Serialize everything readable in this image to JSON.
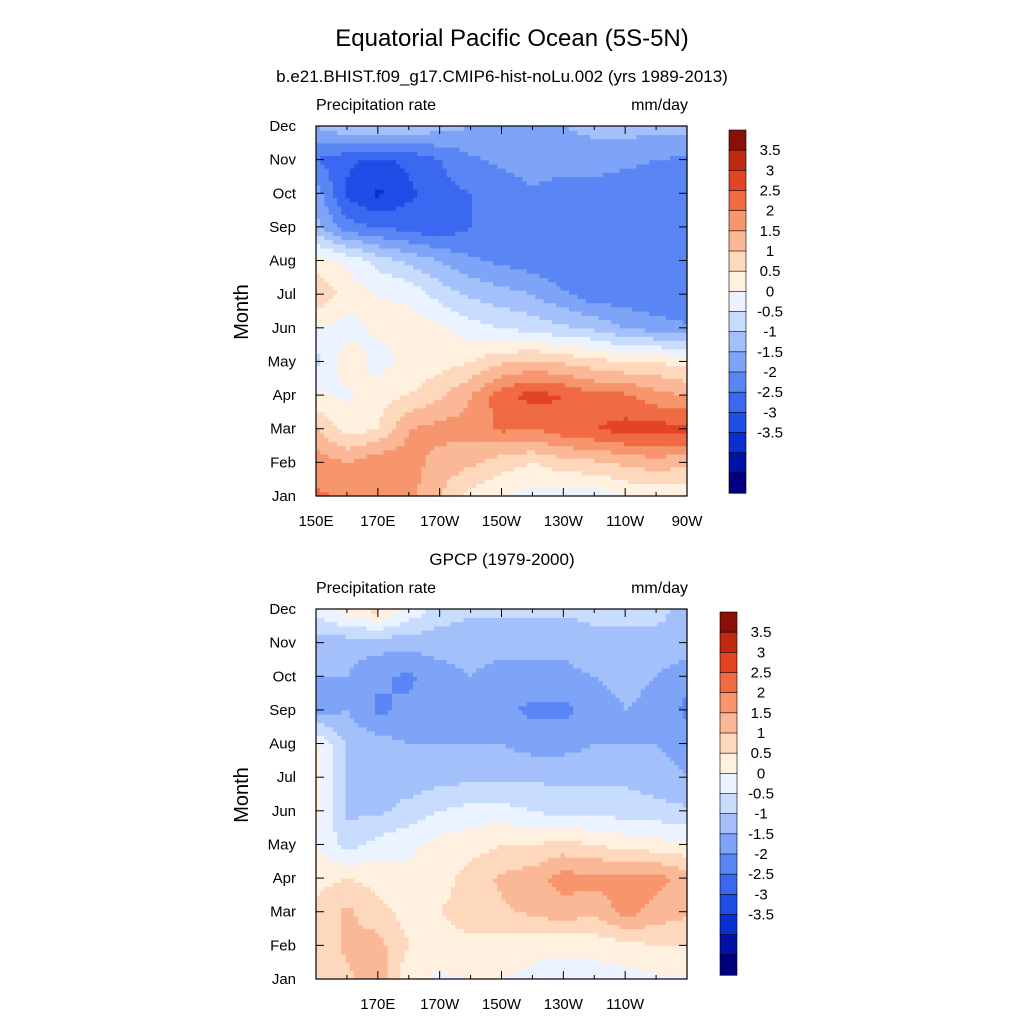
{
  "figure": {
    "title": "Equatorial Pacific Ocean (5S-5N)",
    "subtitle": "b.e21.BHIST.f09_g17.CMIP6-hist-noLu.002 (yrs 1989-2013)"
  },
  "colorbar": {
    "colors": [
      "#00007f",
      "#0011a6",
      "#0a2fd0",
      "#1f4de6",
      "#3a68f0",
      "#5a86f5",
      "#7ea4f8",
      "#a3c0fb",
      "#c8dcfd",
      "#eaf3ff",
      "#fff0e0",
      "#fdd8bc",
      "#fbb896",
      "#f7956d",
      "#f06a44",
      "#e34422",
      "#c02a10",
      "#8b0f05"
    ],
    "labels": [
      "3.5",
      "3",
      "2.5",
      "2",
      "1.5",
      "1",
      "0.5",
      "0",
      "-0.5",
      "-1",
      "-1.5",
      "-2",
      "-2.5",
      "-3",
      "-3.5"
    ],
    "levels": [
      -4,
      -3.5,
      -3,
      -2.5,
      -2,
      -1.5,
      -1,
      -0.5,
      0,
      0.5,
      1,
      1.5,
      2,
      2.5,
      3,
      3.5,
      4
    ]
  },
  "chart_data": [
    {
      "type": "heatmap",
      "title": "",
      "left_label": "Precipitation rate",
      "right_label": "mm/day",
      "ylabel": "Month",
      "x": [
        150,
        160,
        170,
        180,
        190,
        200,
        210,
        220,
        230,
        240,
        250,
        260,
        270
      ],
      "x_tick_labels": [
        "150E",
        "170E",
        "170W",
        "150W",
        "130W",
        "110W",
        "90W"
      ],
      "x_tick_values": [
        150,
        170,
        190,
        210,
        230,
        250,
        270
      ],
      "y_tick_labels": [
        "Jan",
        "Feb",
        "Mar",
        "Apr",
        "May",
        "Jun",
        "Jul",
        "Aug",
        "Sep",
        "Oct",
        "Nov",
        "Dec"
      ],
      "z": [
        [
          2.6,
          2.4,
          2.5,
          2.2,
          1.5,
          0.8,
          0.5,
          0.3,
          0.2,
          0.2,
          0.5,
          0.6,
          0.7
        ],
        [
          2.3,
          2.0,
          2.4,
          2.2,
          1.8,
          1.6,
          1.2,
          1.0,
          1.3,
          1.4,
          1.6,
          1.8,
          1.6
        ],
        [
          1.5,
          0.8,
          1.0,
          2.0,
          2.2,
          2.2,
          2.6,
          2.5,
          2.8,
          3.0,
          3.2,
          3.2,
          3.2
        ],
        [
          0.6,
          0.4,
          0.8,
          1.0,
          1.4,
          2.0,
          2.8,
          3.2,
          3.0,
          2.6,
          2.6,
          2.2,
          2.0
        ],
        [
          -0.2,
          0.8,
          0.3,
          0.6,
          0.8,
          1.0,
          1.4,
          1.6,
          1.4,
          1.2,
          1.0,
          1.0,
          0.8
        ],
        [
          0.5,
          0.3,
          0.6,
          0.8,
          0.6,
          0.2,
          0.0,
          -0.2,
          -0.4,
          -0.6,
          -1.0,
          -1.2,
          -1.4
        ],
        [
          1.4,
          0.8,
          0.5,
          0.4,
          -0.2,
          -0.6,
          -0.8,
          -1.0,
          -1.4,
          -1.8,
          -1.8,
          -2.0,
          -2.0
        ],
        [
          0.8,
          0.4,
          -0.2,
          -0.6,
          -1.0,
          -1.4,
          -1.6,
          -1.8,
          -2.0,
          -2.0,
          -2.0,
          -2.0,
          -2.0
        ],
        [
          -0.8,
          -1.8,
          -2.0,
          -2.2,
          -2.4,
          -2.0,
          -1.8,
          -1.6,
          -1.6,
          -1.8,
          -1.8,
          -1.8,
          -1.8
        ],
        [
          -1.2,
          -2.6,
          -3.1,
          -2.6,
          -2.2,
          -2.0,
          -1.8,
          -1.6,
          -1.8,
          -1.8,
          -1.8,
          -1.8,
          -1.8
        ],
        [
          -2.0,
          -2.4,
          -2.6,
          -2.4,
          -2.0,
          -1.6,
          -1.4,
          -1.2,
          -1.2,
          -1.2,
          -1.4,
          -1.5,
          -1.6
        ],
        [
          -1.0,
          -0.6,
          -0.4,
          -0.6,
          -0.8,
          -1.0,
          -1.2,
          -1.2,
          -1.0,
          -0.9,
          -0.8,
          -0.8,
          -0.8
        ]
      ]
    },
    {
      "type": "heatmap",
      "title": "GPCP (1979-2000)",
      "left_label": "Precipitation rate",
      "right_label": "mm/day",
      "ylabel": "Month",
      "x": [
        150,
        160,
        170,
        180,
        190,
        200,
        210,
        220,
        230,
        240,
        250,
        260,
        270
      ],
      "x_tick_labels": [
        "170E",
        "170W",
        "150W",
        "130W",
        "110W"
      ],
      "x_tick_values": [
        170,
        190,
        210,
        230,
        250
      ],
      "y_tick_labels": [
        "Jan",
        "Feb",
        "Mar",
        "Apr",
        "May",
        "Jun",
        "Jul",
        "Aug",
        "Sep",
        "Oct",
        "Nov",
        "Dec"
      ],
      "z": [
        [
          1.2,
          1.4,
          1.8,
          0.6,
          0.4,
          0.5,
          0.5,
          0.4,
          0.3,
          0.2,
          0.3,
          0.4,
          0.4
        ],
        [
          1.0,
          1.6,
          1.7,
          1.0,
          0.8,
          0.9,
          0.8,
          0.6,
          0.6,
          0.7,
          0.8,
          1.0,
          1.0
        ],
        [
          1.2,
          1.6,
          1.2,
          0.8,
          1.0,
          1.2,
          1.4,
          1.6,
          1.8,
          1.6,
          2.2,
          1.8,
          1.6
        ],
        [
          0.8,
          1.0,
          0.8,
          0.6,
          0.8,
          1.2,
          1.6,
          1.8,
          2.2,
          2.2,
          2.2,
          2.2,
          1.8
        ],
        [
          0.5,
          -0.2,
          0.2,
          0.4,
          0.7,
          0.8,
          1.0,
          1.0,
          1.2,
          1.0,
          0.8,
          0.7,
          0.6
        ],
        [
          0.6,
          -0.6,
          -0.6,
          -0.3,
          0.0,
          0.2,
          0.2,
          0.0,
          -0.2,
          -0.2,
          -0.2,
          -0.3,
          -0.4
        ],
        [
          0.6,
          -0.6,
          -0.8,
          -0.8,
          -0.7,
          -0.6,
          -0.6,
          -0.6,
          -0.6,
          -0.6,
          -0.6,
          -0.8,
          -1.0
        ],
        [
          0.6,
          -0.6,
          -0.8,
          -1.0,
          -1.0,
          -1.0,
          -1.0,
          -1.2,
          -1.2,
          -1.0,
          -1.0,
          -1.0,
          -1.2
        ],
        [
          -1.2,
          -1.0,
          -1.6,
          -1.4,
          -1.2,
          -1.2,
          -1.4,
          -1.6,
          -1.6,
          -1.4,
          -1.0,
          -1.2,
          -1.6
        ],
        [
          -1.0,
          -1.0,
          -1.4,
          -1.6,
          -1.2,
          -1.0,
          -1.2,
          -1.2,
          -1.2,
          -1.0,
          -0.8,
          -1.0,
          -1.4
        ],
        [
          -0.8,
          -0.8,
          -0.8,
          -0.8,
          -0.8,
          -0.8,
          -0.8,
          -0.8,
          -0.8,
          -0.6,
          -0.6,
          -0.6,
          -0.6
        ],
        [
          0.2,
          0.8,
          1.2,
          0.4,
          -0.2,
          -0.4,
          -0.4,
          -0.4,
          -0.4,
          -0.4,
          -0.4,
          -0.4,
          -0.6
        ]
      ]
    }
  ]
}
